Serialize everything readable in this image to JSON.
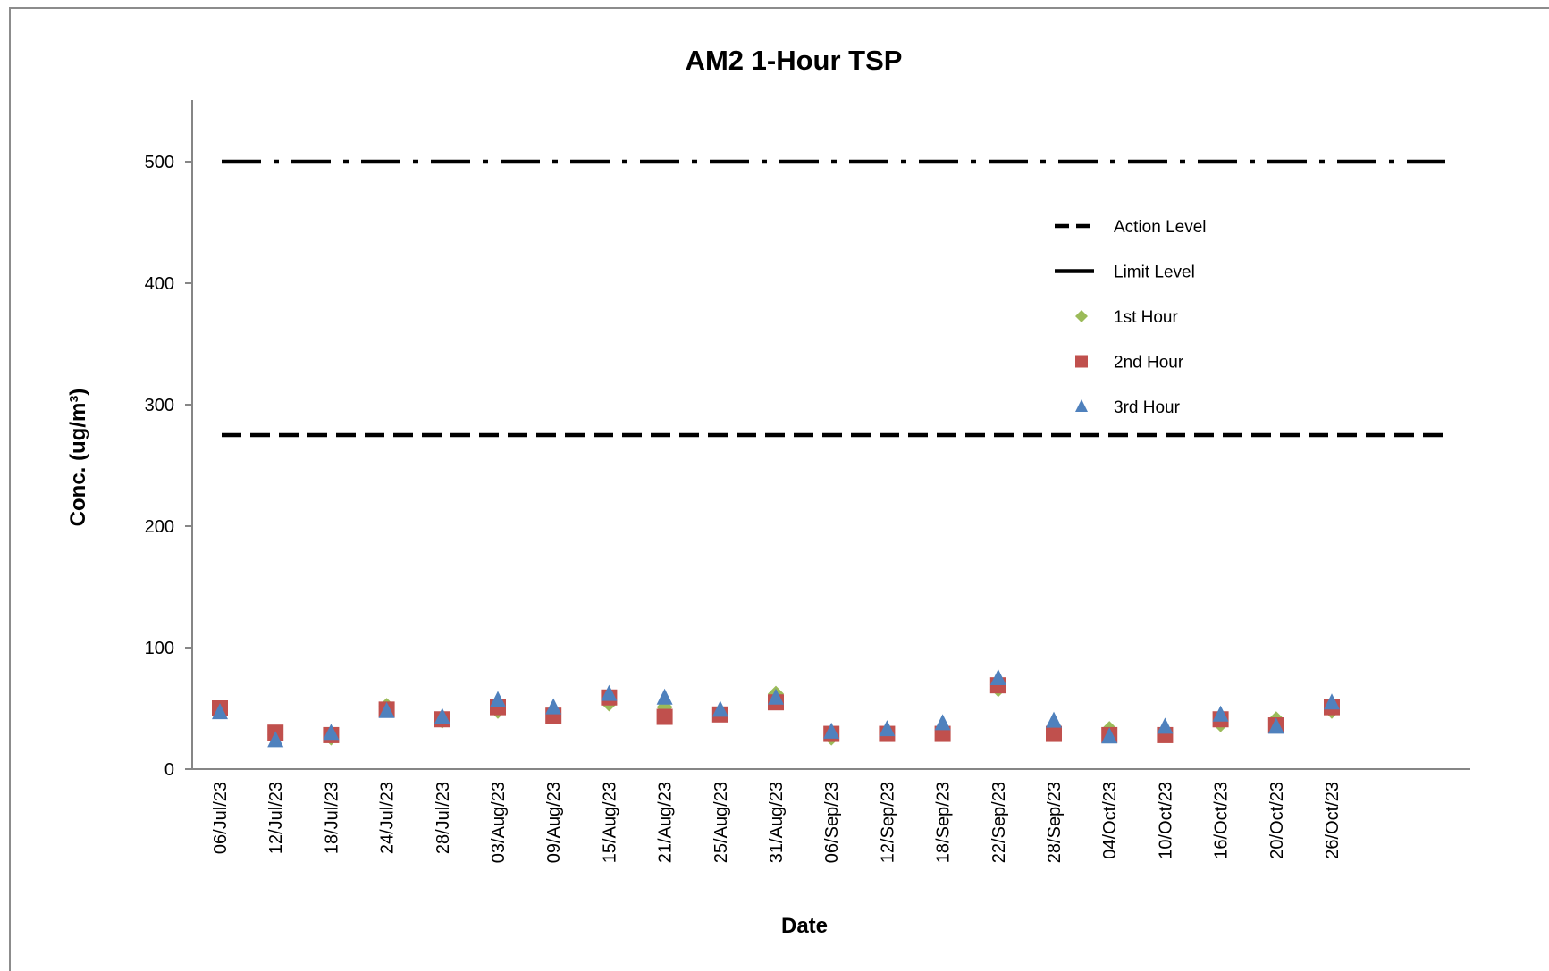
{
  "chart_data": {
    "type": "scatter",
    "title": "AM2 1-Hour TSP",
    "xlabel": "Date",
    "ylabel": "Conc. (ug/m³)",
    "ylim": [
      0,
      550
    ],
    "yticks": [
      0,
      100,
      200,
      300,
      400,
      500
    ],
    "grid": false,
    "legend_position": "top-right",
    "categories": [
      "06/Jul/23",
      "12/Jul/23",
      "18/Jul/23",
      "24/Jul/23",
      "28/Jul/23",
      "03/Aug/23",
      "09/Aug/23",
      "15/Aug/23",
      "21/Aug/23",
      "25/Aug/23",
      "31/Aug/23",
      "06/Sep/23",
      "12/Sep/23",
      "18/Sep/23",
      "22/Sep/23",
      "28/Sep/23",
      "04/Oct/23",
      "10/Oct/23",
      "16/Oct/23",
      "20/Oct/23",
      "26/Oct/23"
    ],
    "reference_lines": [
      {
        "name": "Action Level",
        "value": 275,
        "style": "dashed",
        "color": "#000000"
      },
      {
        "name": "Limit Level",
        "value": 500,
        "style": "dash-dot",
        "color": "#000000"
      }
    ],
    "series": [
      {
        "name": "1st Hour",
        "marker": "diamond",
        "color": "#9BBB59",
        "values": [
          48,
          28,
          26,
          52,
          40,
          48,
          46,
          54,
          51,
          45,
          62,
          26,
          30,
          32,
          66,
          30,
          33,
          30,
          37,
          41,
          48
        ]
      },
      {
        "name": "2nd Hour",
        "marker": "square",
        "color": "#C0504D",
        "values": [
          50,
          30,
          28,
          49,
          41,
          51,
          44,
          59,
          43,
          45,
          55,
          29,
          29,
          29,
          69,
          29,
          28,
          28,
          41,
          36,
          51
        ]
      },
      {
        "name": "3rd Hour",
        "marker": "triangle",
        "color": "#4F81BD",
        "values": [
          47,
          24,
          30,
          48,
          43,
          57,
          51,
          62,
          59,
          49,
          59,
          31,
          33,
          38,
          75,
          40,
          27,
          35,
          45,
          35,
          55
        ]
      }
    ]
  }
}
